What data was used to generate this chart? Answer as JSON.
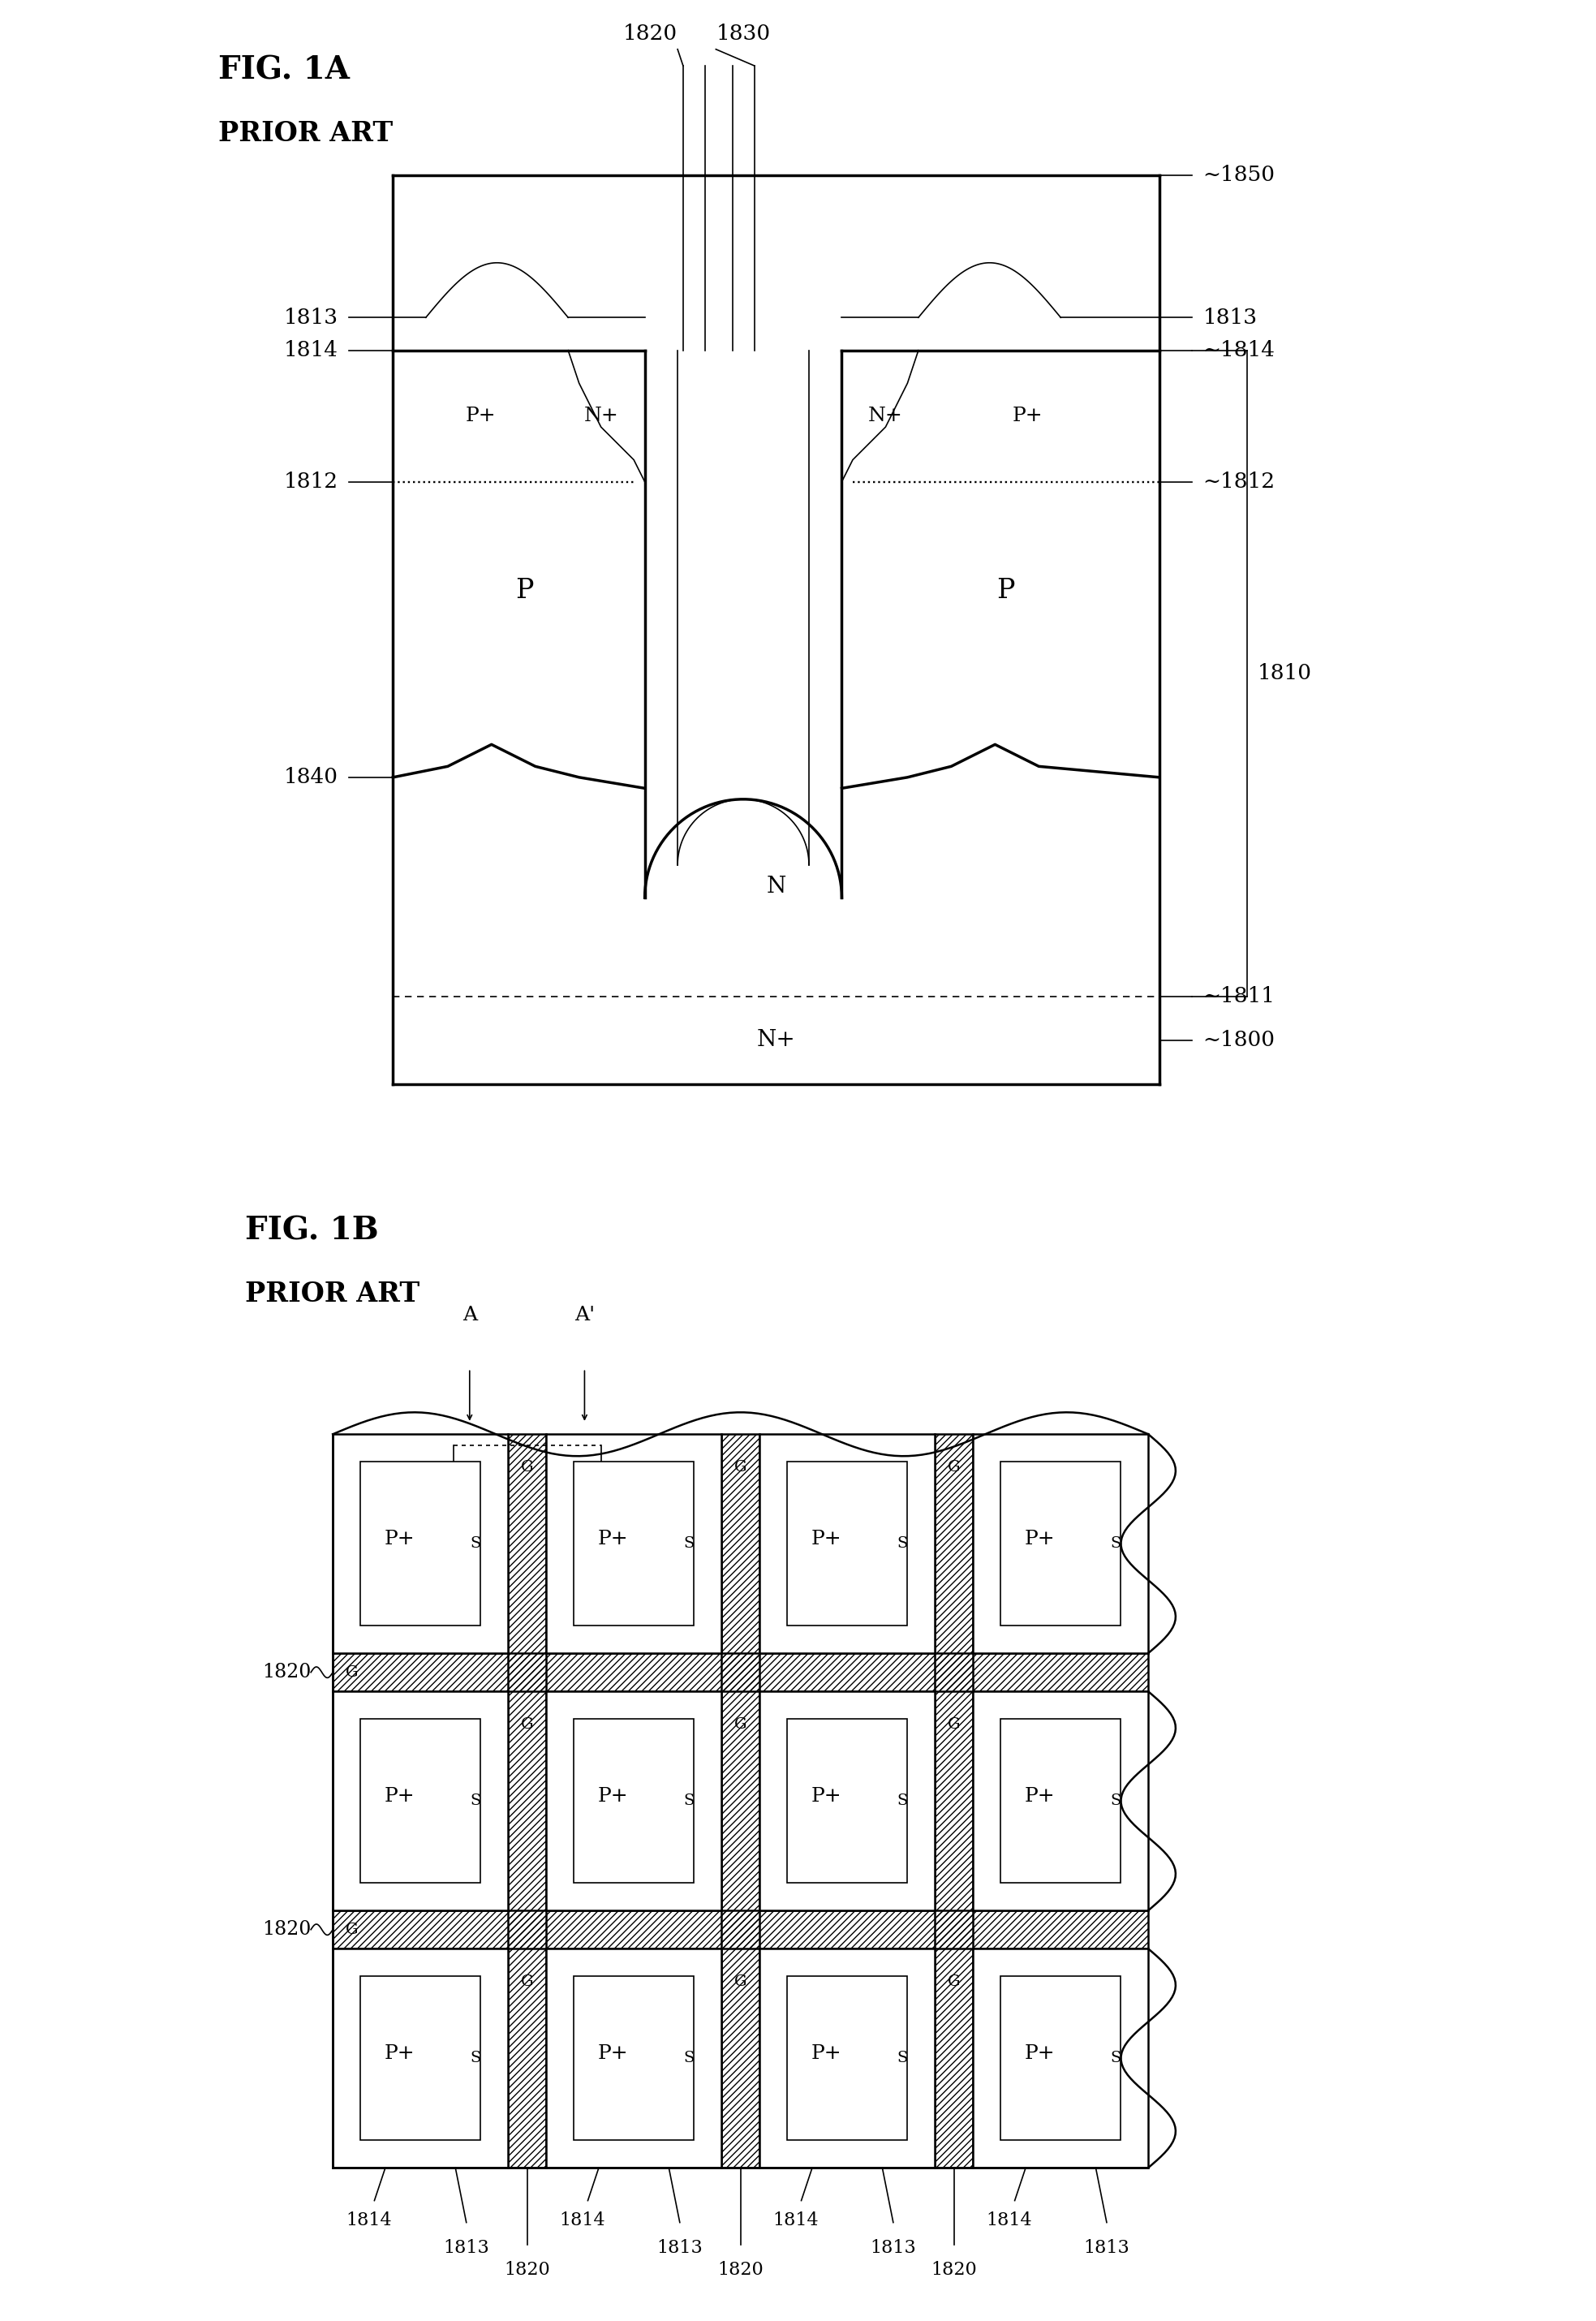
{
  "bg_color": "#ffffff",
  "fig1a_title": "FIG. 1A",
  "fig1a_sub": "PRIOR ART",
  "fig1b_title": "FIG. 1B",
  "fig1b_sub": "PRIOR ART",
  "lw_thick": 2.5,
  "lw_med": 1.8,
  "lw_thin": 1.2,
  "fs_title": 28,
  "fs_sub": 24,
  "fs_label": 20,
  "fs_ref": 19,
  "fs_small": 14
}
